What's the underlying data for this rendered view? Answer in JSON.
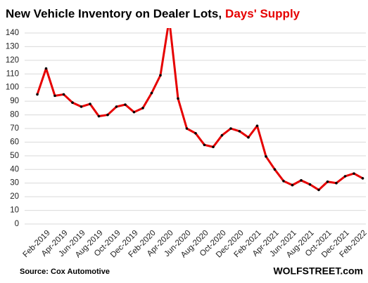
{
  "chart_data": {
    "type": "line",
    "title": "New Vehicle Inventory on Dealer Lots,",
    "title_highlight": "Days' Supply",
    "source": "Source: Cox Automotive",
    "credit": "WOLFSTREET.com",
    "categories": [
      null,
      "Feb-2019",
      null,
      "Apr-2019",
      null,
      "Jun-2019",
      null,
      "Aug-2019",
      null,
      "Oct-2019",
      null,
      "Dec-2019",
      null,
      "Feb-2020",
      null,
      "Apr-2020",
      null,
      "Jun-2020",
      null,
      "Aug-2020",
      null,
      "Oct-2020",
      null,
      "Dec-2020",
      null,
      "Feb-2021",
      null,
      "Apr-2021",
      null,
      "Jun-2021",
      null,
      "Aug-2021",
      null,
      "Oct-2021",
      null,
      "Dec-2021",
      null,
      "Feb-2022"
    ],
    "series": [
      {
        "name": "Days' Supply",
        "color": "#e60000",
        "values": [
          95,
          114,
          94,
          95,
          89,
          86,
          88,
          79,
          80,
          86,
          87.5,
          82,
          85,
          96,
          109,
          150,
          92,
          70,
          66.5,
          58,
          56.5,
          65,
          70,
          68,
          63.5,
          72,
          49.5,
          40,
          31.5,
          28.5,
          32,
          29,
          25,
          31,
          30,
          35,
          37,
          33.5
        ]
      }
    ],
    "ylim": [
      0,
      140
    ],
    "yticks": [
      0,
      10,
      20,
      30,
      40,
      50,
      60,
      70,
      80,
      90,
      100,
      110,
      120,
      130,
      140
    ],
    "grid": true
  }
}
